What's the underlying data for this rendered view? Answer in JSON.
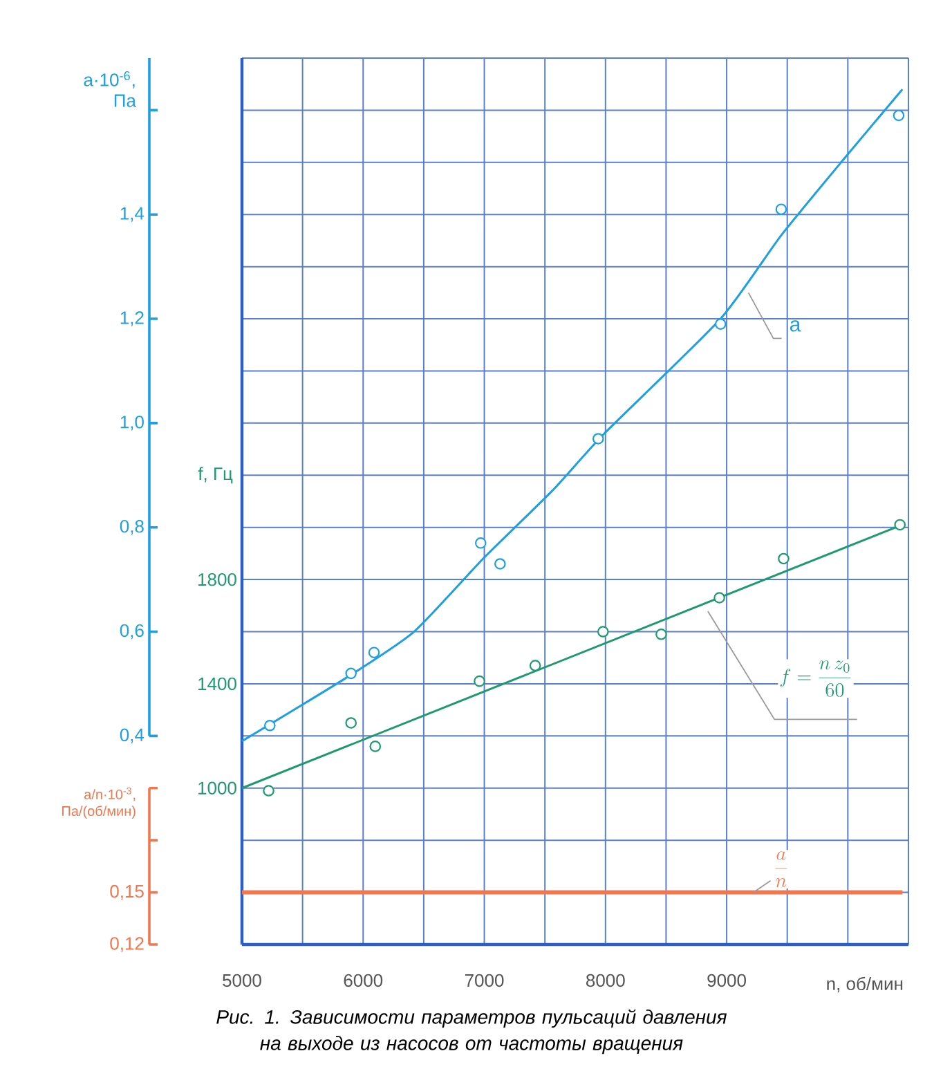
{
  "chart_data": {
    "type": "line",
    "xlabel": "n, об/мин",
    "ylabel": "a·10$^{-6}$, Па",
    "y2label": "f, Гц",
    "y3label": "a/n·10$^{-3}$, Па/(об/мин)",
    "xlim": [
      5000,
      10500
    ],
    "xticks": [
      5000,
      6000,
      7000,
      8000,
      9000
    ],
    "ylim": [
      0,
      1.7
    ],
    "yticks": [
      {
        "value": 0.4,
        "label": "0,4"
      },
      {
        "value": 0.6,
        "label": "0,6"
      },
      {
        "value": 0.8,
        "label": "0,8"
      },
      {
        "value": 1.0,
        "label": "1,0"
      },
      {
        "value": 1.2,
        "label": "1,2"
      },
      {
        "value": 1.4,
        "label": "1,4"
      },
      {
        "value": 1.6,
        "label": null
      }
    ],
    "y2lim": [
      400,
      3800
    ],
    "y2ticks": [
      1000,
      1400,
      1800
    ],
    "y3lim": [
      0.12,
      0.63
    ],
    "y3ticks": [
      {
        "value": 0.12,
        "label": "0,12"
      },
      {
        "value": 0.15,
        "label": "0,15"
      },
      {
        "value": 0.18,
        "label": null
      },
      {
        "value": 0.21,
        "label": null
      }
    ],
    "grid": true,
    "marker": "circle",
    "series": [
      {
        "type": "scatter",
        "color": "#1ea0e0",
        "x": [
          5230,
          5900,
          6090,
          6970,
          7130,
          7940,
          8950,
          9450,
          10420
        ],
        "values": [
          0.42,
          0.52,
          0.56,
          0.77,
          0.73,
          0.97,
          1.19,
          1.41,
          1.59
        ]
      },
      {
        "marker": "none",
        "color": "#1ea0e0",
        "x": [
          5000,
          5850,
          6420,
          6990,
          7560,
          7990,
          8950,
          9450,
          9980,
          10450
        ],
        "values": [
          0.39,
          0.51,
          0.6,
          0.74,
          0.87,
          0.98,
          1.2,
          1.36,
          1.51,
          1.64
        ]
      },
      {
        "type": "scatter",
        "axis": "y2",
        "color": "#1f9a70",
        "x": [
          5220,
          5900,
          6100,
          6960,
          7420,
          7980,
          8460,
          8940,
          9470,
          10430
        ],
        "values": [
          990,
          1250,
          1160,
          1410,
          1470,
          1600,
          1590,
          1730,
          1880,
          2010
        ]
      },
      {
        "axis": "y2",
        "marker": "none",
        "color": "#1f9a70",
        "x": [
          5000,
          10450
        ],
        "values": [
          1000,
          2010
        ]
      },
      {
        "axis": "y3",
        "marker": "none",
        "color": "#f07850",
        "x": [
          5000,
          10450
        ],
        "values": [
          0.15,
          0.15
        ]
      }
    ],
    "annotations": [
      "Рис. 1. Зависимости параметров пульсаций давления на выходе из насосов от частоты вращения",
      {
        "text": "a",
        "x": 9180,
        "y": 1.25
      },
      "f=\\frac{n\\,z_{0}}{60}",
      "\\frac{a}{n}"
    ]
  }
}
